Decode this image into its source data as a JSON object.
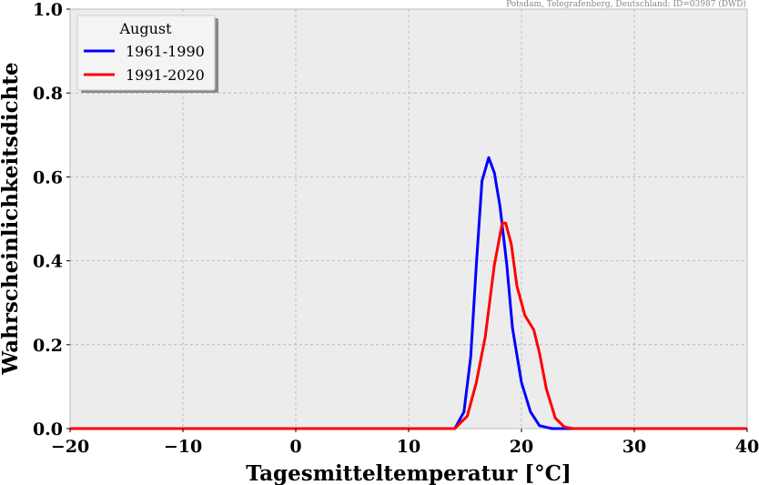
{
  "chart_data": {
    "type": "line",
    "source_note": "Potsdam, Telegrafenberg, Deutschland: ID=03987 (DWD)",
    "xlabel": "Tagesmitteltemperatur [°C]",
    "ylabel": "Wahrscheinlichkeitsdichte",
    "xlim": [
      -20,
      40
    ],
    "ylim": [
      0,
      1
    ],
    "xticks": [
      -20,
      -10,
      0,
      10,
      20,
      30,
      40
    ],
    "xtick_labels": [
      "−20",
      "−10",
      "0",
      "10",
      "20",
      "30",
      "40"
    ],
    "yticks": [
      0,
      0.2,
      0.4,
      0.6,
      0.8,
      1.0
    ],
    "ytick_labels": [
      "0.0",
      "0.2",
      "0.4",
      "0.6",
      "0.8",
      "1.0"
    ],
    "grid": true,
    "legend": {
      "title": "August",
      "placement": "top-left"
    },
    "series": [
      {
        "name": "1961-1990",
        "color": "#0000ff",
        "x": [
          -20,
          14.1,
          14.9,
          15.5,
          16.0,
          16.5,
          17.1,
          17.6,
          18.1,
          18.7,
          19.2,
          20.0,
          20.8,
          21.6,
          22.7,
          40
        ],
        "y": [
          0,
          0,
          0.04,
          0.17,
          0.39,
          0.59,
          0.646,
          0.61,
          0.53,
          0.39,
          0.24,
          0.11,
          0.04,
          0.007,
          0,
          0
        ]
      },
      {
        "name": "1991-2020",
        "color": "#ff0000",
        "x": [
          -20,
          14.1,
          15.2,
          16.0,
          16.8,
          17.6,
          18.3,
          18.6,
          19.1,
          19.6,
          20.3,
          21.1,
          21.6,
          22.2,
          23.0,
          23.8,
          24.6,
          40
        ],
        "y": [
          0,
          0,
          0.03,
          0.11,
          0.22,
          0.39,
          0.49,
          0.49,
          0.44,
          0.34,
          0.27,
          0.235,
          0.18,
          0.095,
          0.025,
          0.004,
          0,
          0
        ]
      }
    ]
  }
}
